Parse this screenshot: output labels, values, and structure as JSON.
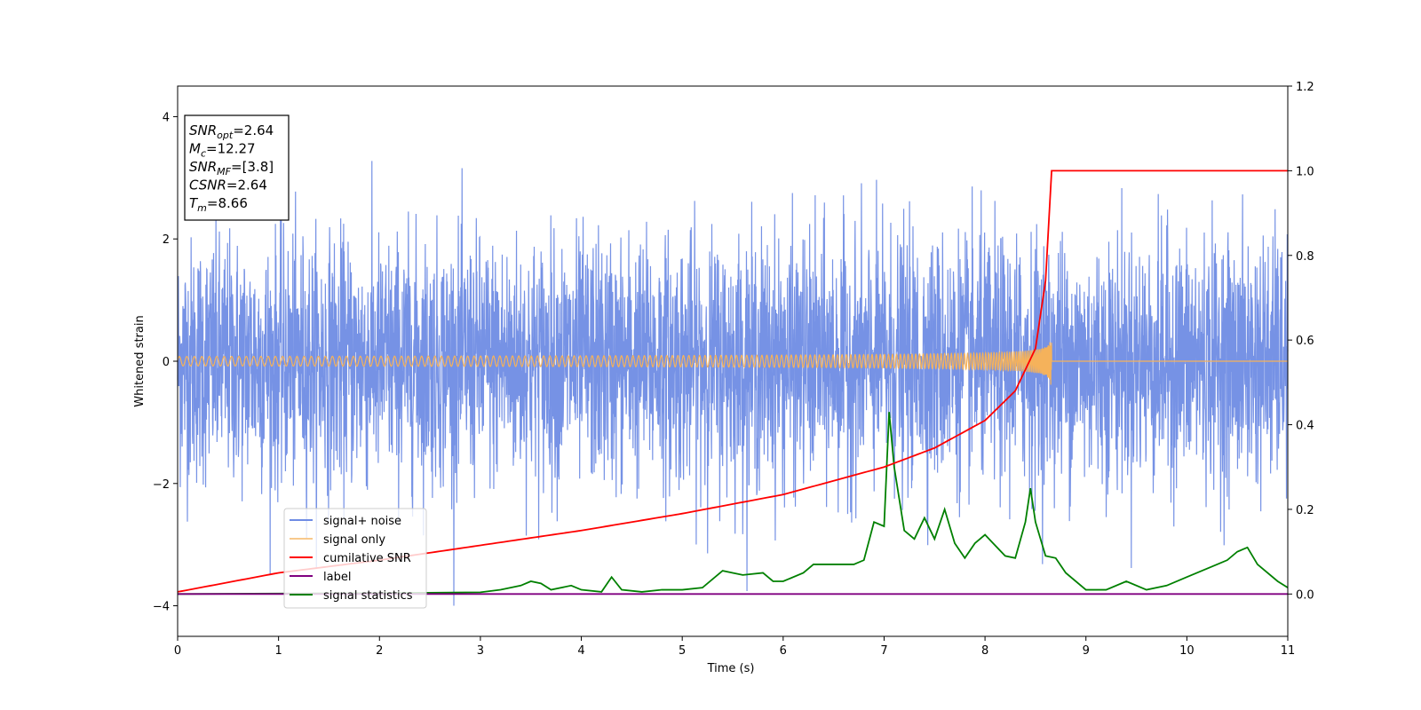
{
  "chart_data": {
    "type": "line",
    "xlabel": "Time (s)",
    "ylabel": "Whitened strain",
    "xlim": [
      0,
      11
    ],
    "ylim_left": [
      -4.5,
      4.5
    ],
    "ylim_right": [
      -0.1,
      1.2
    ],
    "x_ticks": [
      "0",
      "1",
      "2",
      "3",
      "4",
      "5",
      "6",
      "7",
      "8",
      "9",
      "10",
      "11"
    ],
    "y_ticks_left": [
      "−4",
      "−2",
      "0",
      "2",
      "4"
    ],
    "y_ticks_right": [
      "0.0",
      "0.2",
      "0.4",
      "0.6",
      "0.8",
      "1.0",
      "1.2"
    ],
    "grid": false,
    "legend_position": "lower-left",
    "series": [
      {
        "name": "signal+ noise",
        "color": "#6f8ce4",
        "axis": "left",
        "kind": "noise",
        "description_values": {
          "std": 1.0,
          "x_range": [
            0,
            11
          ]
        }
      },
      {
        "name": "signal only",
        "color": "#f5b25b",
        "axis": "left",
        "kind": "chirp",
        "merger_time": 8.66,
        "peak_amplitude": 0.45
      },
      {
        "name": "cumilative SNR",
        "color": "#ff0000",
        "axis": "right",
        "kind": "curve",
        "x": [
          0,
          1,
          2,
          3,
          4,
          5,
          6,
          7,
          7.5,
          8,
          8.3,
          8.5,
          8.6,
          8.66,
          11
        ],
        "y": [
          0.005,
          0.05,
          0.08,
          0.115,
          0.15,
          0.19,
          0.235,
          0.3,
          0.345,
          0.41,
          0.48,
          0.58,
          0.74,
          1.0,
          1.0
        ]
      },
      {
        "name": "label",
        "color": "#800080",
        "axis": "right",
        "kind": "curve",
        "x": [
          0,
          11
        ],
        "y": [
          0.0,
          0.0
        ]
      },
      {
        "name": "signal statistics",
        "color": "#008000",
        "axis": "right",
        "kind": "curve",
        "x": [
          0,
          1,
          2,
          3,
          3.2,
          3.4,
          3.5,
          3.6,
          3.7,
          3.9,
          4.0,
          4.2,
          4.3,
          4.4,
          4.6,
          4.8,
          5.0,
          5.2,
          5.4,
          5.5,
          5.6,
          5.8,
          5.9,
          6.0,
          6.2,
          6.3,
          6.4,
          6.5,
          6.6,
          6.7,
          6.8,
          6.9,
          7.0,
          7.05,
          7.1,
          7.2,
          7.3,
          7.4,
          7.5,
          7.6,
          7.7,
          7.8,
          7.9,
          8.0,
          8.1,
          8.2,
          8.3,
          8.4,
          8.45,
          8.5,
          8.6,
          8.7,
          8.8,
          9.0,
          9.2,
          9.4,
          9.6,
          9.8,
          10.0,
          10.2,
          10.3,
          10.4,
          10.5,
          10.6,
          10.7,
          10.9,
          11.0
        ],
        "y": [
          0.0,
          0.001,
          0.002,
          0.004,
          0.01,
          0.02,
          0.03,
          0.025,
          0.01,
          0.02,
          0.01,
          0.005,
          0.04,
          0.01,
          0.005,
          0.01,
          0.01,
          0.015,
          0.055,
          0.05,
          0.045,
          0.05,
          0.03,
          0.03,
          0.05,
          0.07,
          0.07,
          0.07,
          0.07,
          0.07,
          0.08,
          0.17,
          0.16,
          0.43,
          0.3,
          0.15,
          0.13,
          0.18,
          0.13,
          0.2,
          0.12,
          0.085,
          0.12,
          0.14,
          0.115,
          0.09,
          0.085,
          0.17,
          0.25,
          0.17,
          0.09,
          0.085,
          0.05,
          0.01,
          0.01,
          0.03,
          0.01,
          0.02,
          0.04,
          0.06,
          0.07,
          0.08,
          0.1,
          0.11,
          0.07,
          0.03,
          0.015
        ]
      }
    ],
    "stats_box": [
      {
        "base": "SNR",
        "sub": "opt",
        "value": "=2.64"
      },
      {
        "base": "M",
        "sub": "c",
        "value": "=12.27"
      },
      {
        "base": "SNR",
        "sub": "MF",
        "value": "=[3.8]"
      },
      {
        "base": "CSNR",
        "sub": "",
        "value": "=2.64"
      },
      {
        "base": "T",
        "sub": "m",
        "value": "=8.66"
      }
    ]
  }
}
